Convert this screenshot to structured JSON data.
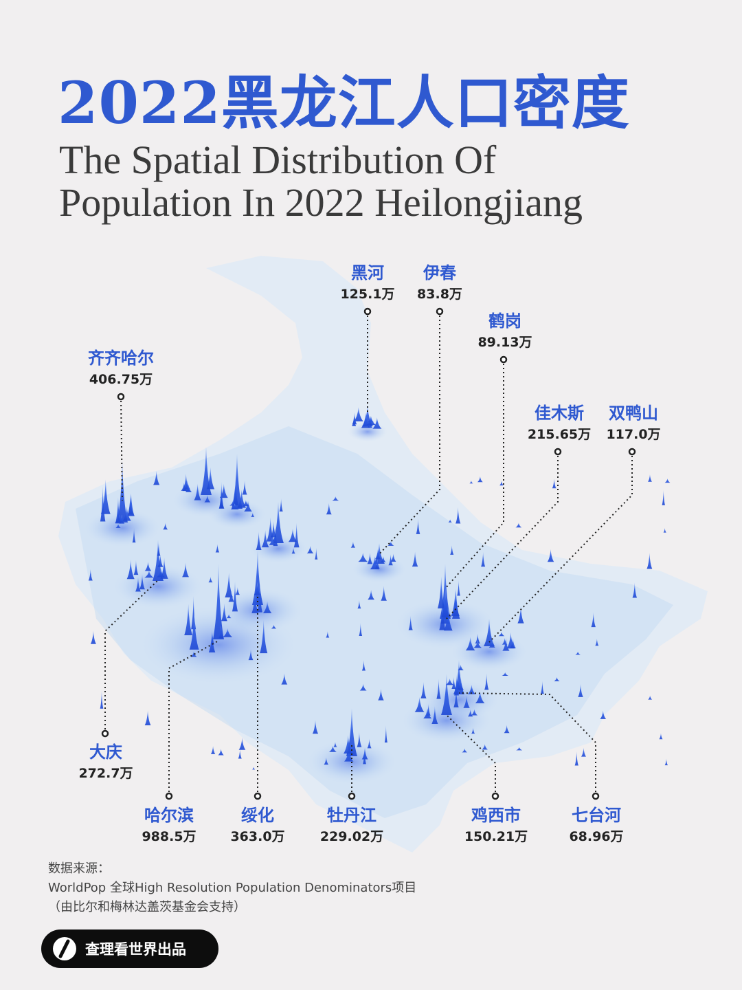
{
  "title": {
    "cn": "2022黑龙江人口密度",
    "en_line1": "The Spatial Distribution Of",
    "en_line2": "Population In 2022 Heilongjiang"
  },
  "cities": [
    {
      "id": "qiqihar",
      "name": "齐齐哈尔",
      "population": "406.75万"
    },
    {
      "id": "heihe",
      "name": "黑河",
      "population": "125.1万"
    },
    {
      "id": "yichun",
      "name": "伊春",
      "population": "83.8万"
    },
    {
      "id": "hegang",
      "name": "鹤岗",
      "population": "89.13万"
    },
    {
      "id": "jiamusi",
      "name": "佳木斯",
      "population": "215.65万"
    },
    {
      "id": "shuangyashan",
      "name": "双鸭山",
      "population": "117.0万"
    },
    {
      "id": "daqing",
      "name": "大庆",
      "population": "272.7万"
    },
    {
      "id": "harbin",
      "name": "哈尔滨",
      "population": "988.5万"
    },
    {
      "id": "suihua",
      "name": "绥化",
      "population": "363.0万"
    },
    {
      "id": "mudanjiang",
      "name": "牡丹江",
      "population": "229.02万"
    },
    {
      "id": "jixi",
      "name": "鸡西市",
      "population": "150.21万"
    },
    {
      "id": "qitaihe",
      "name": "七台河",
      "population": "68.96万"
    }
  ],
  "source": {
    "heading": "数据来源：",
    "line1": "WorldPop 全球High Resolution Population Denominators项目",
    "line2": "（由比尔和梅林达盖茨基金会支持）"
  },
  "brand": {
    "label": "查理看世界出品",
    "icon": "brand-logo-icon"
  },
  "colors": {
    "accent": "#2f59d0",
    "map_base": "#dbe9f7",
    "spike": "#2a55e0",
    "background": "#f1eff0"
  }
}
